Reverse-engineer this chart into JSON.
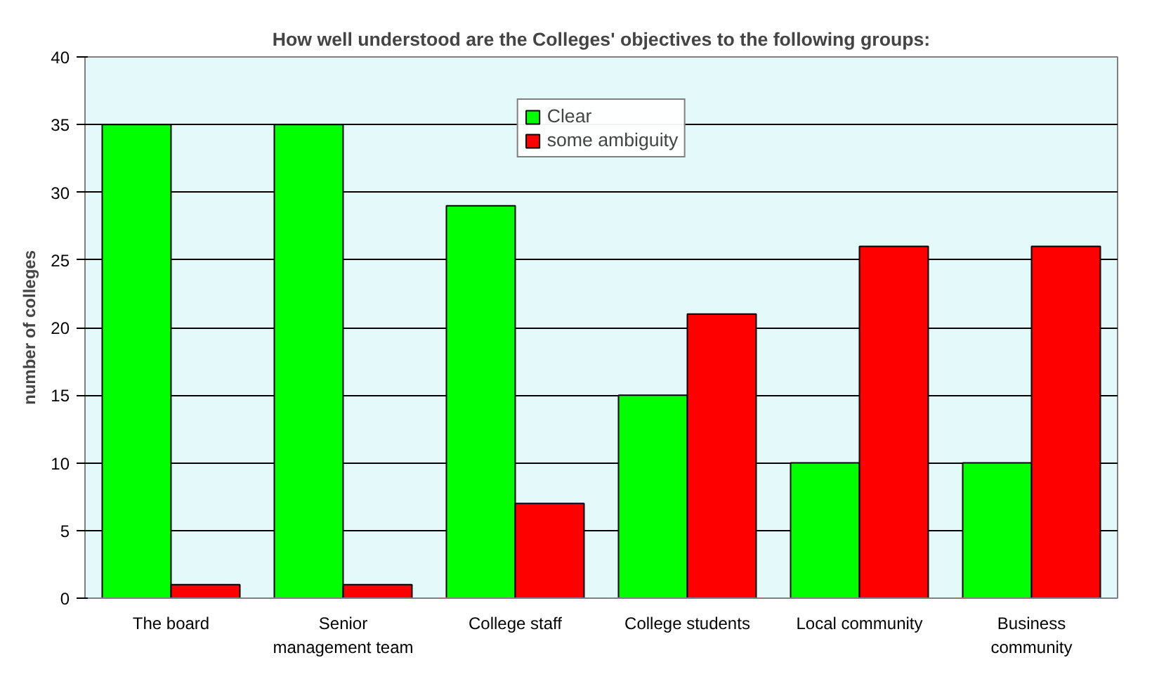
{
  "chart_data": {
    "type": "bar",
    "title": "How well understood are the Colleges' objectives to the following groups:",
    "ylabel": "number of colleges",
    "categories": [
      "The board",
      "Senior\nmanagement team",
      "College staff",
      "College students",
      "Local community",
      "Business\ncommunity"
    ],
    "series": [
      {
        "name": "Clear",
        "color": "#00ff00",
        "values": [
          35,
          35,
          29,
          15,
          10,
          10
        ]
      },
      {
        "name": "some ambiguity",
        "color": "#ff0000",
        "values": [
          1,
          1,
          7,
          21,
          26,
          26
        ]
      }
    ],
    "ylim": [
      0,
      40
    ],
    "yticks": [
      0,
      5,
      10,
      15,
      20,
      25,
      30,
      35,
      40
    ],
    "grid": "y",
    "legend": "top"
  }
}
